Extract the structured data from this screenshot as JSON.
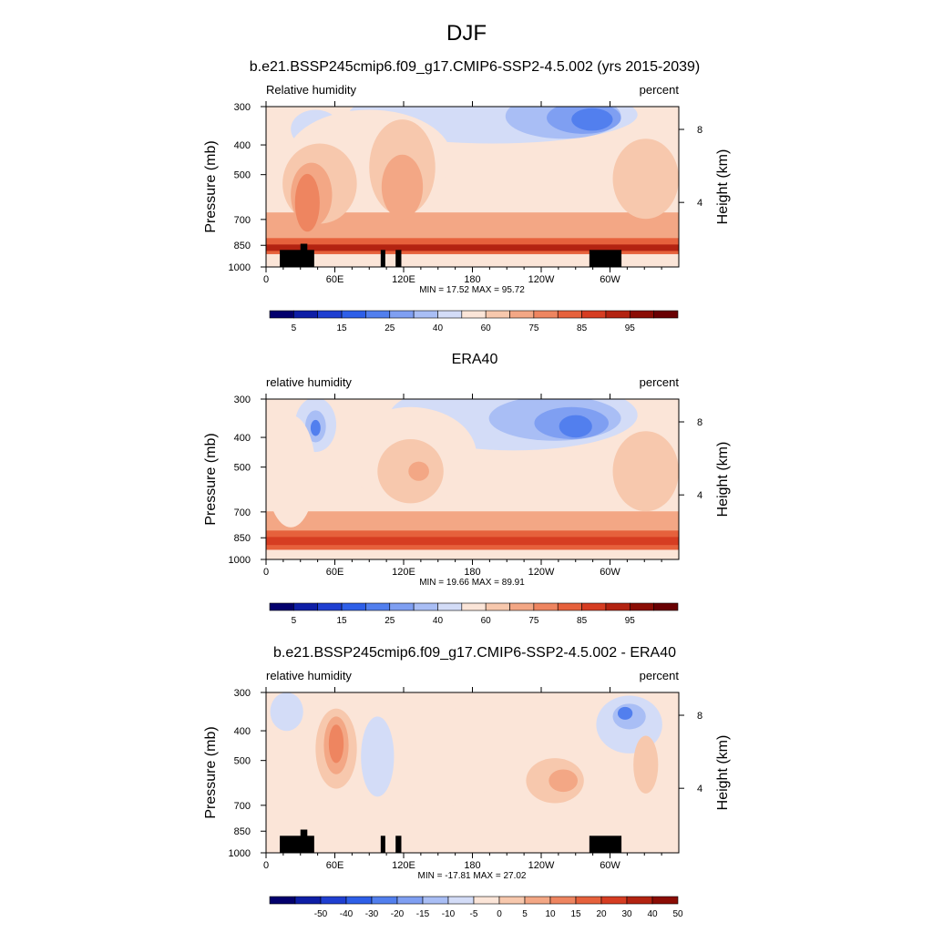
{
  "figure": {
    "title": "DJF"
  },
  "chart_data": [
    {
      "type": "heatmap",
      "title": "b.e21.BSSP245cmip6.f09_g17.CMIP6-SSP2-4.5.002 (yrs 2015-2039)",
      "left_label": "Relative humidity",
      "right_label": "percent",
      "ylabel": "Pressure (mb)",
      "ylabel_right": "Height (km)",
      "x_ticks": [
        "0",
        "60E",
        "120E",
        "180",
        "120W",
        "60W"
      ],
      "x_tick_values": [
        0,
        60,
        120,
        180,
        240,
        300
      ],
      "xlim": [
        0,
        360
      ],
      "y_ticks": [
        "300",
        "400",
        "500",
        "700",
        "850",
        "1000"
      ],
      "y_tick_values": [
        300,
        400,
        500,
        700,
        850,
        1000
      ],
      "ylim": [
        1000,
        300
      ],
      "y_right_ticks": [
        "8",
        "4"
      ],
      "y_right_tick_values": [
        8,
        4
      ],
      "stats": "MIN =  17.52  MAX =  95.72",
      "colorbar": {
        "labels": [
          "5",
          "15",
          "25",
          "40",
          "60",
          "75",
          "85",
          "95"
        ],
        "colors": [
          "#03006d",
          "#0e1ea6",
          "#1f3fd1",
          "#2e5fe8",
          "#527fee",
          "#7f9ff2",
          "#a9bef5",
          "#d3dcf7",
          "#fbe5d8",
          "#f7c8ad",
          "#f3a785",
          "#ee8560",
          "#e6613c",
          "#d63d22",
          "#b32311",
          "#8b0d05",
          "#690003"
        ],
        "label_positions": [
          1,
          3,
          5,
          7,
          9,
          11,
          13,
          15
        ]
      },
      "masked_terrain": true
    },
    {
      "type": "heatmap",
      "title": "ERA40",
      "left_label": "relative humidity",
      "right_label": "percent",
      "ylabel": "Pressure (mb)",
      "ylabel_right": "Height (km)",
      "x_ticks": [
        "0",
        "60E",
        "120E",
        "180",
        "120W",
        "60W"
      ],
      "x_tick_values": [
        0,
        60,
        120,
        180,
        240,
        300
      ],
      "xlim": [
        0,
        360
      ],
      "y_ticks": [
        "300",
        "400",
        "500",
        "700",
        "850",
        "1000"
      ],
      "y_tick_values": [
        300,
        400,
        500,
        700,
        850,
        1000
      ],
      "ylim": [
        1000,
        300
      ],
      "y_right_ticks": [
        "8",
        "4"
      ],
      "y_right_tick_values": [
        8,
        4
      ],
      "stats": "MIN =  19.66  MAX =  89.91",
      "colorbar": {
        "labels": [
          "5",
          "15",
          "25",
          "40",
          "60",
          "75",
          "85",
          "95"
        ],
        "colors": [
          "#03006d",
          "#0e1ea6",
          "#1f3fd1",
          "#2e5fe8",
          "#527fee",
          "#7f9ff2",
          "#a9bef5",
          "#d3dcf7",
          "#fbe5d8",
          "#f7c8ad",
          "#f3a785",
          "#ee8560",
          "#e6613c",
          "#d63d22",
          "#b32311",
          "#8b0d05",
          "#690003"
        ],
        "label_positions": [
          1,
          3,
          5,
          7,
          9,
          11,
          13,
          15
        ]
      },
      "masked_terrain": false
    },
    {
      "type": "heatmap",
      "title": "b.e21.BSSP245cmip6.f09_g17.CMIP6-SSP2-4.5.002 - ERA40",
      "left_label": "relative humidity",
      "right_label": "percent",
      "ylabel": "Pressure (mb)",
      "ylabel_right": "Height (km)",
      "x_ticks": [
        "0",
        "60E",
        "120E",
        "180",
        "120W",
        "60W"
      ],
      "x_tick_values": [
        0,
        60,
        120,
        180,
        240,
        300
      ],
      "xlim": [
        0,
        360
      ],
      "y_ticks": [
        "300",
        "400",
        "500",
        "700",
        "850",
        "1000"
      ],
      "y_tick_values": [
        300,
        400,
        500,
        700,
        850,
        1000
      ],
      "ylim": [
        1000,
        300
      ],
      "y_right_ticks": [
        "8",
        "4"
      ],
      "y_right_tick_values": [
        8,
        4
      ],
      "stats": "MIN = -17.81  MAX =  27.02",
      "colorbar": {
        "labels": [
          "-50",
          "-40",
          "-30",
          "-20",
          "-15",
          "-10",
          "-5",
          "0",
          "5",
          "10",
          "15",
          "20",
          "30",
          "40",
          "50"
        ],
        "colors": [
          "#03006d",
          "#0e1ea6",
          "#1f3fd1",
          "#2e5fe8",
          "#527fee",
          "#7f9ff2",
          "#a9bef5",
          "#d3dcf7",
          "#fbe5d8",
          "#f7c8ad",
          "#f3a785",
          "#ee8560",
          "#e6613c",
          "#d63d22",
          "#b32311",
          "#8b0d05"
        ],
        "label_positions": [
          1,
          2,
          3,
          4,
          5,
          6,
          7,
          8,
          9,
          10,
          11,
          12,
          13,
          14,
          15
        ]
      },
      "masked_terrain": true
    }
  ]
}
